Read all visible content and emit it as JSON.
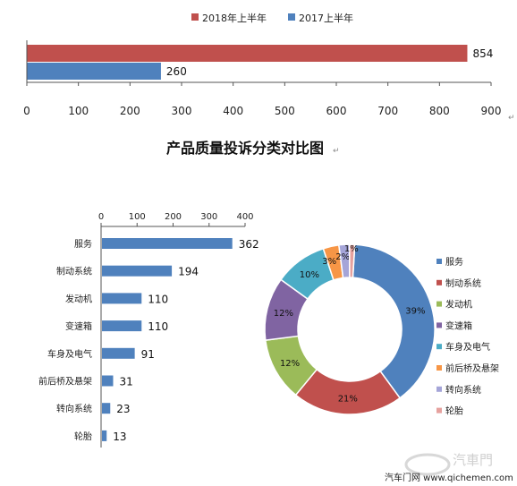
{
  "chart_data": [
    {
      "type": "bar",
      "orientation": "horizontal",
      "series": [
        {
          "name": "2018年上半年",
          "color": "#c0504d",
          "values": [
            854
          ]
        },
        {
          "name": "2017上半年",
          "color": "#4f81bd",
          "values": [
            260
          ]
        }
      ],
      "xlim": [
        0,
        900
      ],
      "xticks": [
        "0",
        "100",
        "200",
        "300",
        "400",
        "500",
        "600",
        "700",
        "800",
        "900"
      ],
      "legend_position": "top"
    },
    {
      "type": "bar",
      "orientation": "horizontal",
      "title": "产品质量投诉分类对比图",
      "categories": [
        "服务",
        "制动系统",
        "发动机",
        "变速箱",
        "车身及电气",
        "前后桥及悬架",
        "转向系统",
        "轮胎"
      ],
      "values": [
        362,
        194,
        110,
        110,
        91,
        31,
        23,
        13
      ],
      "color": "#4f81bd",
      "xlim": [
        0,
        400
      ],
      "xticks": [
        "0",
        "100",
        "200",
        "300",
        "400"
      ],
      "axis_position": "top"
    },
    {
      "type": "pie",
      "donut": true,
      "categories": [
        "服务",
        "制动系统",
        "发动机",
        "变速箱",
        "车身及电气",
        "前后桥及悬架",
        "转向系统",
        "轮胎"
      ],
      "values": [
        39,
        21,
        12,
        12,
        10,
        3,
        2,
        1
      ],
      "labels": [
        "39%",
        "21%",
        "12%",
        "12%",
        "10%",
        "3%",
        "2%",
        "1%"
      ],
      "colors": [
        "#4f81bd",
        "#c0504d",
        "#9bbb59",
        "#8064a2",
        "#4bacc6",
        "#f79646",
        "#a5a5d8",
        "#e6a19e"
      ],
      "legend_position": "right"
    }
  ],
  "marks": {
    "return_mark": "↵"
  },
  "watermark": {
    "text": "汽車門",
    "site": "汽车门网 www.qichemen.com"
  }
}
